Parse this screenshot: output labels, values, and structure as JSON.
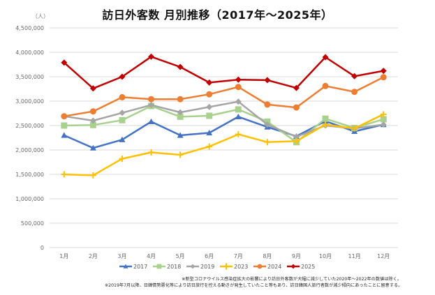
{
  "chart_data": {
    "type": "line",
    "title": "訪日外客数 月別推移（2017年～2025年）",
    "unit_label": "（人）",
    "xlabel": "",
    "ylabel": "",
    "ylim": [
      0,
      4500000
    ],
    "ytick_step": 500000,
    "ytick_labels": [
      "0",
      "500,000",
      "1,000,000",
      "1,500,000",
      "2,000,000",
      "2,500,000",
      "3,000,000",
      "3,500,000",
      "4,000,000",
      "4,500,000"
    ],
    "grid": true,
    "legend_position": "bottom",
    "categories": [
      "1月",
      "2月",
      "3月",
      "4月",
      "5月",
      "6月",
      "7月",
      "8月",
      "9月",
      "10月",
      "11月",
      "12月"
    ],
    "series": [
      {
        "name": "2017",
        "color": "#4472C4",
        "marker": "triangle",
        "values": [
          2300000,
          2040000,
          2210000,
          2580000,
          2300000,
          2350000,
          2680000,
          2470000,
          2280000,
          2590000,
          2380000,
          2520000
        ]
      },
      {
        "name": "2018",
        "color": "#A9D18E",
        "marker": "square",
        "values": [
          2500000,
          2510000,
          2610000,
          2900000,
          2680000,
          2700000,
          2830000,
          2580000,
          2160000,
          2640000,
          2450000,
          2630000
        ]
      },
      {
        "name": "2019",
        "color": "#A5A5A5",
        "marker": "diamond",
        "values": [
          2690000,
          2600000,
          2760000,
          2920000,
          2770000,
          2880000,
          2990000,
          2520000,
          2270000,
          2500000,
          2440000,
          2520000
        ]
      },
      {
        "name": "2023",
        "color": "#FFC000",
        "marker": "plus",
        "values": [
          1500000,
          1480000,
          1820000,
          1950000,
          1900000,
          2070000,
          2320000,
          2160000,
          2180000,
          2520000,
          2440000,
          2730000
        ]
      },
      {
        "name": "2024",
        "color": "#ED7D31",
        "marker": "circle",
        "values": [
          2690000,
          2790000,
          3080000,
          3040000,
          3040000,
          3140000,
          3290000,
          2930000,
          2870000,
          3310000,
          3190000,
          3490000
        ]
      },
      {
        "name": "2025",
        "color": "#C00000",
        "marker": "diamond",
        "values": [
          3790000,
          3260000,
          3500000,
          3910000,
          3700000,
          3380000,
          3440000,
          3430000,
          3270000,
          3900000,
          3510000,
          3620000
        ]
      }
    ],
    "notes": [
      "※新型コロナウイルス感染症拡大の影響により訪日外客数が大幅に減少していた2020年～2022年の数値は除く。",
      "※2019年7月以降、日韓情勢悪化等により訪日旅行を控える動きが発生していたこと等もあり、訪日韓国人旅行者数が減少傾向にあったことに留意する。"
    ],
    "gridline_color": "#D9D9D9"
  }
}
